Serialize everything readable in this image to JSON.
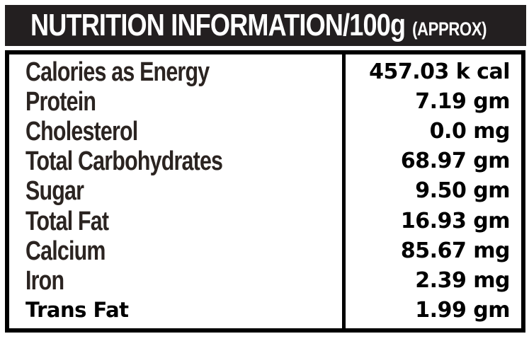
{
  "header": {
    "title": "NUTRITION INFORMATION/100g",
    "approx": "(APPROX)"
  },
  "table": {
    "rows": [
      {
        "label": "Calories as Energy",
        "value": "457.03 k cal"
      },
      {
        "label": "Protein",
        "value": "7.19 gm"
      },
      {
        "label": "Cholesterol",
        "value": "0.0 mg"
      },
      {
        "label": "Total Carbohydrates",
        "value": "68.97 gm"
      },
      {
        "label": "Sugar",
        "value": "9.50 gm"
      },
      {
        "label": "Total Fat",
        "value": "16.93 gm"
      },
      {
        "label": "Calcium",
        "value": "85.67 mg"
      },
      {
        "label": "Iron",
        "value": "2.39 mg"
      },
      {
        "label": "Trans Fat",
        "value": "1.99 gm"
      }
    ]
  },
  "colors": {
    "header_background": "#231f20",
    "header_text": "#ffffff",
    "label_text": "#2b2421",
    "value_text": "#000000",
    "border": "#000000",
    "page_background": "#ffffff"
  }
}
